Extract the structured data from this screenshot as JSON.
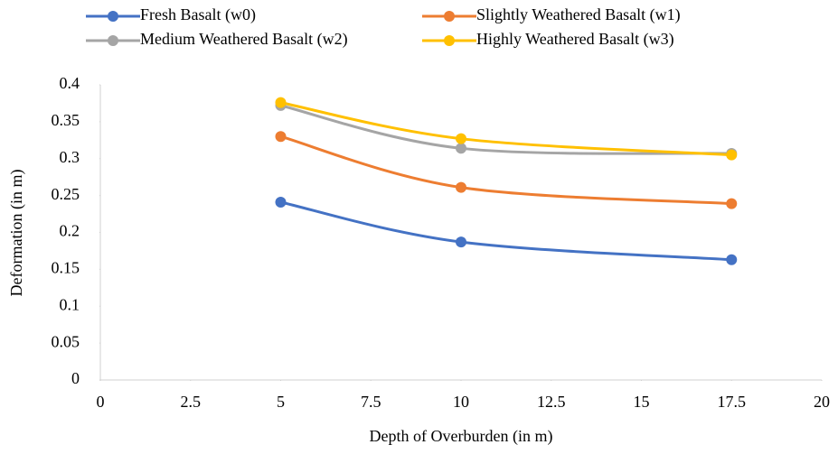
{
  "chart_data": {
    "type": "line",
    "smooth": true,
    "xlabel": "Depth of Overburden (in m)",
    "ylabel": "Deformation (in m)",
    "x": [
      5,
      10,
      17.5
    ],
    "series": [
      {
        "name": "Fresh Basalt (w0)",
        "color": "#4472c4",
        "values": [
          0.241,
          0.187,
          0.163
        ]
      },
      {
        "name": "Slightly Weathered Basalt (w1)",
        "color": "#ed7d31",
        "values": [
          0.33,
          0.261,
          0.239
        ]
      },
      {
        "name": "Medium Weathered Basalt (w2)",
        "color": "#a5a5a5",
        "values": [
          0.372,
          0.314,
          0.307
        ]
      },
      {
        "name": "Highly Weathered Basalt (w3)",
        "color": "#ffc000",
        "values": [
          0.376,
          0.327,
          0.305
        ]
      }
    ],
    "xlim": [
      0,
      20
    ],
    "xticks": [
      0,
      2.5,
      5,
      7.5,
      10,
      12.5,
      15,
      17.5,
      20
    ],
    "ylim": [
      0,
      0.4
    ],
    "yticks": [
      0,
      0.05,
      0.1,
      0.15,
      0.2,
      0.25,
      0.3,
      0.35,
      0.4
    ],
    "legend": "top",
    "grid": false
  }
}
